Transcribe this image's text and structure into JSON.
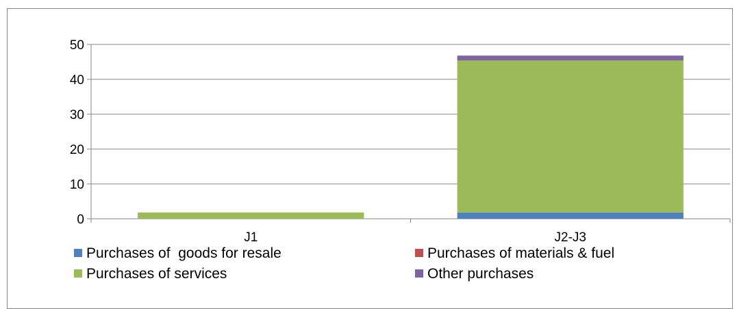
{
  "chart_data": {
    "type": "bar",
    "stacked": true,
    "categories": [
      "J1",
      "J2-J3"
    ],
    "series": [
      {
        "name": "Purchases of  goods for resale",
        "color": "#4F81BD",
        "values": [
          0,
          1.8
        ]
      },
      {
        "name": "Purchases of materials & fuel",
        "color": "#C0504D",
        "values": [
          0,
          0
        ]
      },
      {
        "name": "Purchases of services",
        "color": "#9BBB59",
        "values": [
          1.8,
          43.6
        ]
      },
      {
        "name": "Other purchases",
        "color": "#8064A2",
        "values": [
          0,
          1.4
        ]
      }
    ],
    "yticks": [
      "0",
      "10",
      "20",
      "30",
      "40",
      "50"
    ],
    "ylim": [
      0,
      50
    ],
    "grid": true,
    "legend_position": "bottom",
    "title": "",
    "xlabel": "",
    "ylabel": ""
  }
}
